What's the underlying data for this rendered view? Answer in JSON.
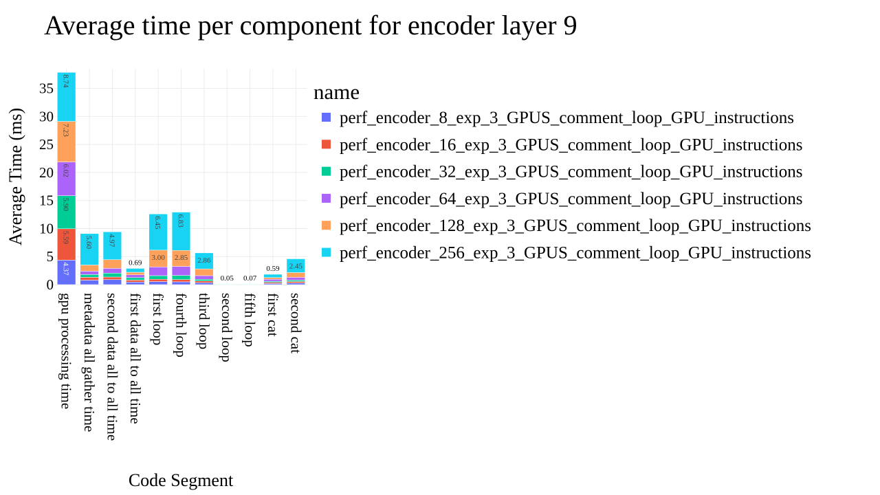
{
  "chart_data": {
    "type": "bar",
    "stacked": true,
    "title": "Average time per component for encoder layer 9",
    "xlabel": "Code Segment",
    "ylabel": "Average Time (ms)",
    "ylim": [
      0,
      38.5
    ],
    "yticks": [
      0,
      5,
      10,
      15,
      20,
      25,
      30,
      35
    ],
    "grid": true,
    "legend_title": "name",
    "legend_position": "right",
    "categories": [
      "gpu processing time",
      "metadata all gather time",
      "second data all to all time",
      "first data all to all time",
      "first loop",
      "fourth loop",
      "third loop",
      "second loop",
      "fifth loop",
      "first cat",
      "second cat"
    ],
    "series": [
      {
        "name": "perf_encoder_8_exp_3_GPUS_comment_loop_GPU_instructions",
        "color": "#636efa",
        "values": [
          4.37,
          0.8,
          0.9,
          0.45,
          0.55,
          0.5,
          0.35,
          0.01,
          0.01,
          0.2,
          0.3
        ],
        "labels": [
          "4.37",
          "",
          "",
          "",
          "",
          "",
          "",
          "",
          "",
          "",
          ""
        ]
      },
      {
        "name": "perf_encoder_16_exp_3_GPUS_comment_loop_GPU_instructions",
        "color": "#ef553b",
        "values": [
          5.59,
          0.5,
          0.45,
          0.35,
          0.4,
          0.4,
          0.3,
          0.01,
          0.01,
          0.2,
          0.25
        ],
        "labels": [
          "5.59",
          "",
          "",
          "",
          "",
          "",
          "",
          "",
          "",
          "",
          ""
        ]
      },
      {
        "name": "perf_encoder_32_exp_3_GPUS_comment_loop_GPU_instructions",
        "color": "#00cc96",
        "values": [
          5.9,
          0.5,
          0.7,
          0.45,
          0.65,
          0.75,
          0.3,
          0.01,
          0.01,
          0.2,
          0.25
        ],
        "labels": [
          "5.90",
          "",
          "",
          "",
          "",
          "",
          "",
          "",
          "",
          "",
          ""
        ]
      },
      {
        "name": "perf_encoder_64_exp_3_GPUS_comment_loop_GPU_instructions",
        "color": "#ab63fa",
        "values": [
          6.02,
          0.6,
          0.85,
          0.5,
          1.55,
          1.6,
          0.65,
          0.01,
          0.01,
          0.35,
          0.5
        ],
        "labels": [
          "6.02",
          "",
          "",
          "",
          "",
          "",
          "",
          "",
          "",
          "",
          ""
        ]
      },
      {
        "name": "perf_encoder_128_exp_3_GPUS_comment_loop_GPU_instructions",
        "color": "#ffa15a",
        "values": [
          7.23,
          1.1,
          1.55,
          0.45,
          3.0,
          2.85,
          1.2,
          0.01,
          0.01,
          0.3,
          0.85
        ],
        "labels": [
          "7.23",
          "",
          "",
          "",
          "3.00",
          "2.85",
          "",
          "",
          "",
          "",
          ""
        ]
      },
      {
        "name": "perf_encoder_256_exp_3_GPUS_comment_loop_GPU_instructions",
        "color": "#19d3f3",
        "values": [
          8.74,
          5.6,
          4.97,
          0.69,
          6.45,
          6.83,
          2.86,
          0.05,
          0.07,
          0.59,
          2.45
        ],
        "labels": [
          "8.74",
          "5.60",
          "4.97",
          "0.69",
          "6.45",
          "6.83",
          "2.86",
          "0.05",
          "0.07",
          "0.59",
          "2.45"
        ]
      }
    ]
  }
}
